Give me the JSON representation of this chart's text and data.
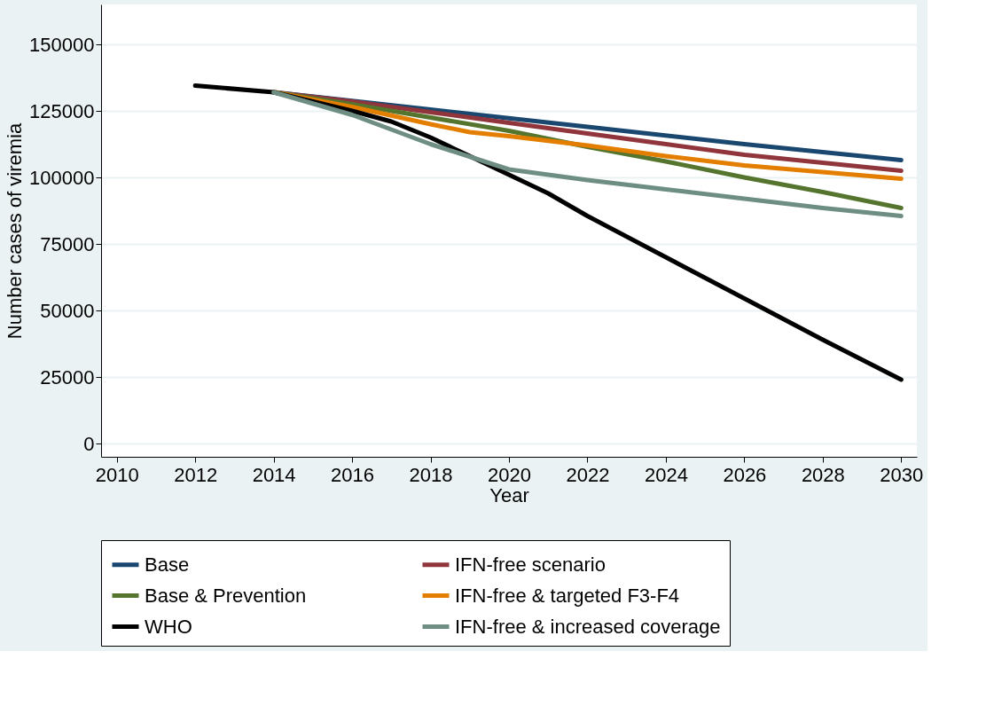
{
  "chart_data": {
    "type": "line",
    "xlabel": "Year",
    "ylabel": "Number cases of viremia",
    "xlim": [
      2009.6,
      2030.4
    ],
    "xticks": [
      2010,
      2012,
      2014,
      2016,
      2018,
      2020,
      2022,
      2024,
      2026,
      2028,
      2030
    ],
    "ylim": [
      -5000,
      165000
    ],
    "yticks": [
      0,
      25000,
      50000,
      75000,
      100000,
      125000,
      150000
    ],
    "grid": "y",
    "legend": "bottom",
    "line_style": "solid",
    "marker": "none",
    "series": [
      {
        "name": "Base",
        "color": "#1a476f",
        "x": [
          2014,
          2018,
          2022,
          2026,
          2030
        ],
        "values": [
          132000,
          125500,
          119000,
          112500,
          106500
        ]
      },
      {
        "name": "IFN-free scenario",
        "color": "#90353b",
        "x": [
          2014,
          2016,
          2018,
          2020,
          2022,
          2024,
          2026,
          2028,
          2030
        ],
        "values": [
          132000,
          128500,
          124500,
          120500,
          116500,
          112500,
          108500,
          105500,
          102500
        ]
      },
      {
        "name": "Base & Prevention",
        "color": "#55752f",
        "x": [
          2014,
          2016,
          2018,
          2020,
          2022,
          2024,
          2026,
          2028,
          2030
        ],
        "values": [
          132000,
          127500,
          122500,
          117500,
          111500,
          106000,
          100000,
          94500,
          88500
        ]
      },
      {
        "name": "IFN-free & targeted F3-F4",
        "color": "#e37e00",
        "x": [
          2014,
          2016,
          2018,
          2019,
          2020,
          2022,
          2024,
          2026,
          2028,
          2030
        ],
        "values": [
          132000,
          126500,
          120000,
          117000,
          115500,
          112000,
          108000,
          104500,
          102000,
          99500
        ]
      },
      {
        "name": "WHO",
        "color": "#000000",
        "x": [
          2012,
          2014,
          2016,
          2017,
          2018,
          2019,
          2020,
          2021,
          2022,
          2024,
          2026,
          2028,
          2030
        ],
        "values": [
          134500,
          132000,
          125000,
          121000,
          115000,
          108000,
          101000,
          94000,
          85500,
          70000,
          54500,
          39000,
          24000
        ]
      },
      {
        "name": "IFN-free & increased coverage",
        "color": "#6e8e84",
        "x": [
          2014,
          2016,
          2018,
          2020,
          2022,
          2024,
          2026,
          2028,
          2030
        ],
        "values": [
          132000,
          123500,
          112500,
          103000,
          99000,
          95500,
          92000,
          88500,
          85500
        ]
      }
    ]
  }
}
